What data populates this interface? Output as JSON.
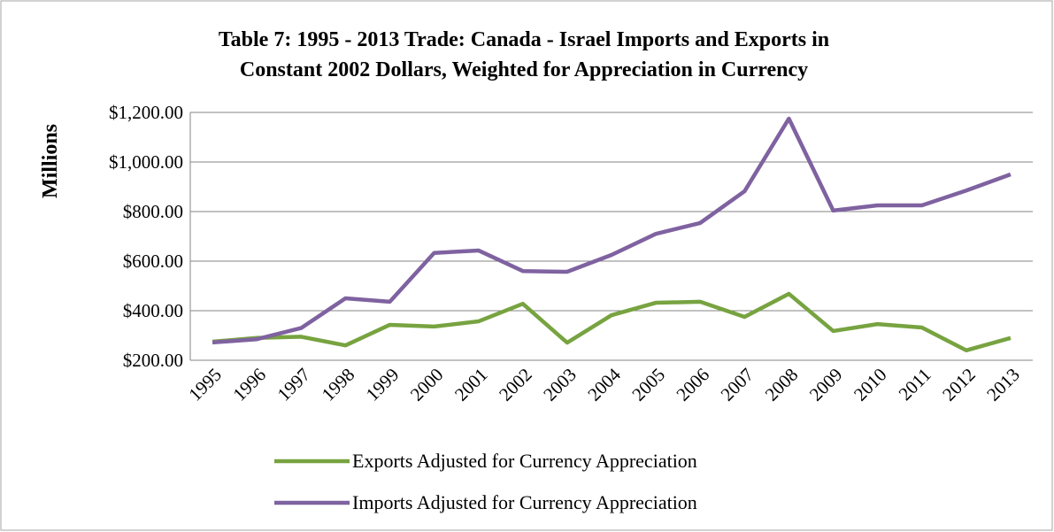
{
  "chart_data": {
    "type": "line",
    "title": [
      "Table 7: 1995 - 2013 Trade: Canada - Israel Imports and Exports in",
      "Constant 2002 Dollars, Weighted for Appreciation in Currency"
    ],
    "y_label": "Millions",
    "categories": [
      "1995",
      "1996",
      "1997",
      "1998",
      "1999",
      "2000",
      "2001",
      "2002",
      "2003",
      "2004",
      "2005",
      "2006",
      "2007",
      "2008",
      "2009",
      "2010",
      "2011",
      "2012",
      "2013"
    ],
    "series": [
      {
        "name": "Exports Adjusted for Currency Appreciation",
        "color": "#77a340",
        "values": [
          275,
          290,
          295,
          260,
          343,
          336,
          357,
          428,
          271,
          382,
          432,
          436,
          375,
          468,
          318,
          346,
          332,
          240,
          290
        ]
      },
      {
        "name": "Imports Adjusted for Currency Appreciation",
        "color": "#7f62a0",
        "values": [
          272,
          285,
          330,
          450,
          436,
          633,
          643,
          560,
          557,
          625,
          710,
          754,
          882,
          1175,
          804,
          825,
          825,
          885,
          950
        ]
      }
    ],
    "ylim": [
      200,
      1200
    ],
    "yticks": [
      {
        "value": 200,
        "label": "$200.00"
      },
      {
        "value": 400,
        "label": "$400.00"
      },
      {
        "value": 600,
        "label": "$600.00"
      },
      {
        "value": 800,
        "label": "$800.00"
      },
      {
        "value": 1000,
        "label": "$1,000.00"
      },
      {
        "value": 1200,
        "label": "$1,200.00"
      }
    ],
    "grid": true,
    "legend": "bottom"
  }
}
